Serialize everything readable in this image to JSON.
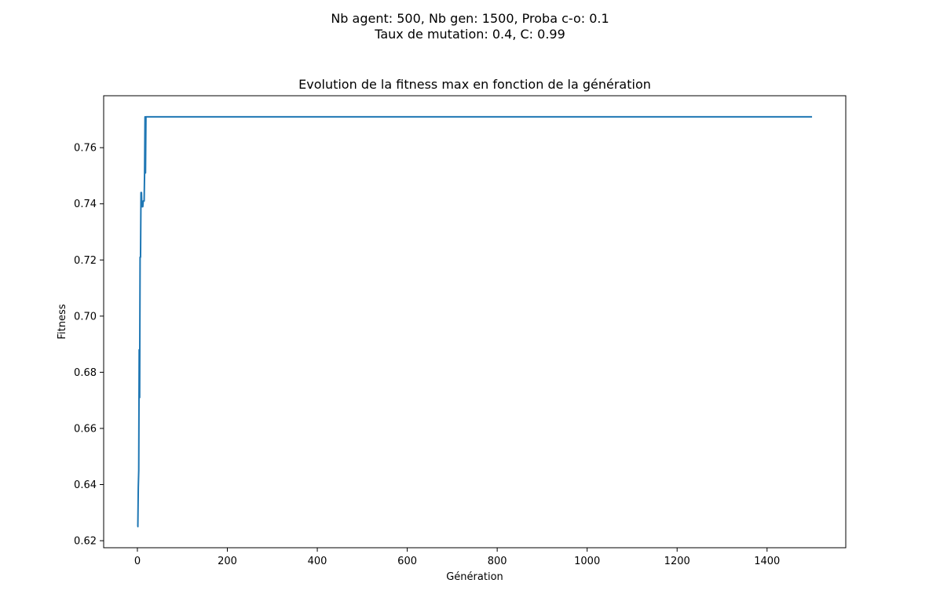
{
  "figure": {
    "suptitle_line1": "Nb agent: 500, Nb gen: 1500, Proba c-o: 0.1",
    "suptitle_line2": "Taux de mutation: 0.4, C: 0.99",
    "line_color": "#1f77b4"
  },
  "chart_data": {
    "type": "line",
    "title": "Evolution de la fitness max en fonction de la génération",
    "xlabel": "Génération",
    "ylabel": "Fitness",
    "xlim": [
      -75,
      1575
    ],
    "ylim": [
      0.6175,
      0.7785
    ],
    "xticks": [
      0,
      200,
      400,
      600,
      800,
      1000,
      1200,
      1400
    ],
    "xtick_labels": [
      "0",
      "200",
      "400",
      "600",
      "800",
      "1000",
      "1200",
      "1400"
    ],
    "yticks": [
      0.62,
      0.64,
      0.66,
      0.68,
      0.7,
      0.72,
      0.74,
      0.76
    ],
    "ytick_labels": [
      "0.62",
      "0.64",
      "0.66",
      "0.68",
      "0.70",
      "0.72",
      "0.74",
      "0.76"
    ],
    "grid": false,
    "series": [
      {
        "x": [
          0,
          1,
          2,
          3,
          4,
          5,
          6,
          7,
          8,
          9,
          10,
          11,
          12,
          13,
          14,
          15,
          16,
          17,
          18,
          19,
          20,
          21,
          22,
          23,
          24,
          1500
        ],
        "y": [
          0.625,
          0.625,
          0.639,
          0.645,
          0.688,
          0.671,
          0.721,
          0.721,
          0.744,
          0.744,
          0.739,
          0.739,
          0.739,
          0.741,
          0.741,
          0.741,
          0.751,
          0.771,
          0.751,
          0.771,
          0.771,
          0.771,
          0.771,
          0.771,
          0.771,
          0.771
        ]
      }
    ]
  }
}
